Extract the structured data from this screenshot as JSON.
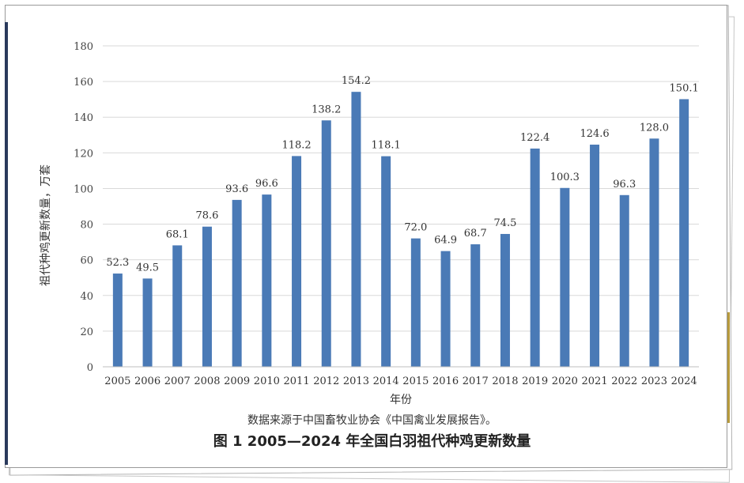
{
  "chart_data": {
    "type": "bar",
    "categories": [
      "2005",
      "2006",
      "2007",
      "2008",
      "2009",
      "2010",
      "2011",
      "2012",
      "2013",
      "2014",
      "2015",
      "2016",
      "2017",
      "2018",
      "2019",
      "2020",
      "2021",
      "2022",
      "2023",
      "2024"
    ],
    "values": [
      52.3,
      49.5,
      68.1,
      78.6,
      93.6,
      96.6,
      118.2,
      138.2,
      154.2,
      118.1,
      72.0,
      64.9,
      68.7,
      74.5,
      122.4,
      100.3,
      124.6,
      96.3,
      128.0,
      150.1
    ],
    "value_labels": [
      "52.3",
      "49.5",
      "68.1",
      "78.6",
      "93.6",
      "96.6",
      "118.2",
      "138.2",
      "154.2",
      "118.1",
      "72.0",
      "64.9",
      "68.7",
      "74.5",
      "122.4",
      "100.3",
      "124.6",
      "96.3",
      "128.0",
      "150.1"
    ],
    "xlabel": "年份",
    "ylabel": "祖代种鸡更新数量，万套",
    "ylim": [
      0,
      180
    ],
    "yticks": [
      0,
      20,
      40,
      60,
      80,
      100,
      120,
      140,
      160,
      180
    ],
    "grid": true,
    "bar_color": "#4a7ab6"
  },
  "source_note": "数据来源于中国畜牧业协会《中国禽业发展报告》。",
  "figure_caption": "图 1 2005—2024 年全国白羽祖代种鸡更新数量"
}
